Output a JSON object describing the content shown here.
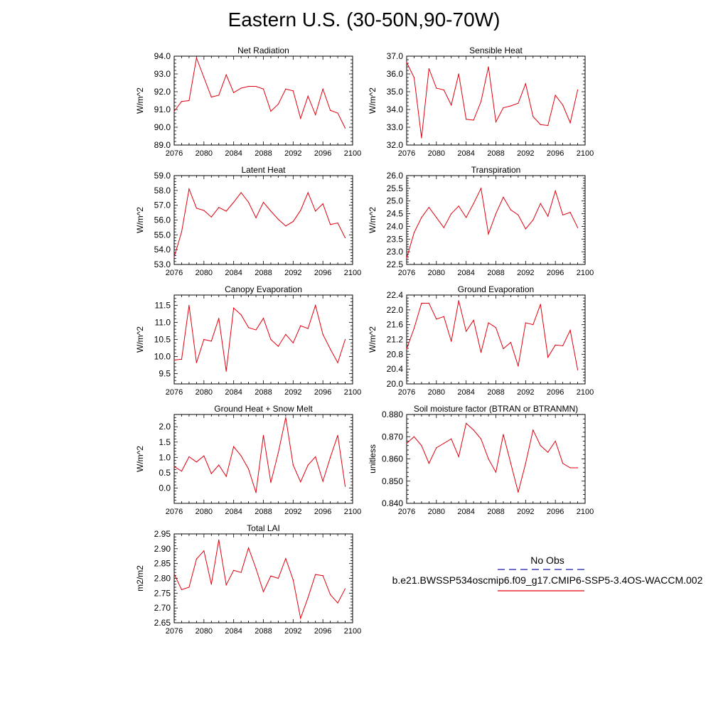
{
  "title": "Eastern U.S. (30-50N,90-70W)",
  "legend": {
    "obs_label": "No Obs",
    "obs_color": "#1a1aa8",
    "model_label": "b.e21.BWSSP534oscmip6.f09_g17.CMIP6-SSP5-3.4OS-WACCM.002",
    "model_color": "#e0000e"
  },
  "chart_data": [
    {
      "type": "line",
      "title": "Net Radiation",
      "ylabel": "W/m^2",
      "xlim": [
        2076,
        2100
      ],
      "ylim": [
        89.0,
        94.0
      ],
      "xticks": [
        2076,
        2080,
        2084,
        2088,
        2092,
        2096,
        2100
      ],
      "yticks": [
        "89.0",
        "90.0",
        "91.0",
        "92.0",
        "93.0",
        "94.0"
      ],
      "series": [
        {
          "x": [
            2076,
            2077,
            2078,
            2079,
            2080,
            2081,
            2082,
            2083,
            2084,
            2085,
            2086,
            2087,
            2088,
            2089,
            2090,
            2091,
            2092,
            2093,
            2094,
            2095,
            2096,
            2097,
            2098,
            2099
          ],
          "values": [
            90.9,
            91.45,
            91.5,
            93.9,
            92.8,
            91.7,
            91.8,
            92.95,
            91.95,
            92.2,
            92.3,
            92.3,
            92.15,
            90.9,
            91.3,
            92.15,
            92.05,
            90.5,
            91.75,
            90.7,
            92.15,
            90.95,
            90.8,
            89.95
          ]
        }
      ]
    },
    {
      "type": "line",
      "title": "Sensible Heat",
      "ylabel": "W/m^2",
      "xlim": [
        2076,
        2100
      ],
      "ylim": [
        32.0,
        37.0
      ],
      "xticks": [
        2076,
        2080,
        2084,
        2088,
        2092,
        2096,
        2100
      ],
      "yticks": [
        "32.0",
        "33.0",
        "34.0",
        "35.0",
        "36.0",
        "37.0"
      ],
      "series": [
        {
          "x": [
            2076,
            2077,
            2078,
            2079,
            2080,
            2081,
            2082,
            2083,
            2084,
            2085,
            2086,
            2087,
            2088,
            2089,
            2090,
            2091,
            2092,
            2093,
            2094,
            2095,
            2096,
            2097,
            2098,
            2099
          ],
          "values": [
            36.65,
            35.8,
            32.4,
            36.3,
            35.2,
            35.1,
            34.25,
            36.0,
            33.45,
            33.4,
            34.45,
            36.4,
            33.3,
            34.1,
            34.2,
            34.35,
            35.45,
            33.6,
            33.15,
            33.1,
            34.8,
            34.25,
            33.25,
            35.1
          ]
        }
      ]
    },
    {
      "type": "line",
      "title": "Latent Heat",
      "ylabel": "W/m^2",
      "xlim": [
        2076,
        2100
      ],
      "ylim": [
        53.0,
        59.0
      ],
      "xticks": [
        2076,
        2080,
        2084,
        2088,
        2092,
        2096,
        2100
      ],
      "yticks": [
        "53.0",
        "54.0",
        "55.0",
        "56.0",
        "57.0",
        "58.0",
        "59.0"
      ],
      "series": [
        {
          "x": [
            2076,
            2077,
            2078,
            2079,
            2080,
            2081,
            2082,
            2083,
            2084,
            2085,
            2086,
            2087,
            2088,
            2089,
            2090,
            2091,
            2092,
            2093,
            2094,
            2095,
            2096,
            2097,
            2098,
            2099
          ],
          "values": [
            53.5,
            55.2,
            58.1,
            56.8,
            56.65,
            56.2,
            56.85,
            56.6,
            57.2,
            57.85,
            57.2,
            56.15,
            57.2,
            56.6,
            56.05,
            55.6,
            55.9,
            56.65,
            57.85,
            56.6,
            57.1,
            55.7,
            55.8,
            54.8
          ]
        }
      ]
    },
    {
      "type": "line",
      "title": "Transpiration",
      "ylabel": "W/m^2",
      "xlim": [
        2076,
        2100
      ],
      "ylim": [
        22.5,
        26.0
      ],
      "xticks": [
        2076,
        2080,
        2084,
        2088,
        2092,
        2096,
        2100
      ],
      "yticks": [
        "22.5",
        "23.0",
        "23.5",
        "24.0",
        "24.5",
        "25.0",
        "25.5",
        "26.0"
      ],
      "series": [
        {
          "x": [
            2076,
            2077,
            2078,
            2079,
            2080,
            2081,
            2082,
            2083,
            2084,
            2085,
            2086,
            2087,
            2088,
            2089,
            2090,
            2091,
            2092,
            2093,
            2094,
            2095,
            2096,
            2097,
            2098,
            2099
          ],
          "values": [
            22.75,
            23.75,
            24.35,
            24.75,
            24.35,
            23.95,
            24.5,
            24.8,
            24.35,
            24.9,
            25.5,
            23.7,
            24.5,
            25.15,
            24.65,
            24.45,
            23.9,
            24.25,
            24.9,
            24.4,
            25.4,
            24.45,
            24.55,
            23.95
          ]
        }
      ]
    },
    {
      "type": "line",
      "title": "Canopy Evaporation",
      "ylabel": "W/m^2",
      "xlim": [
        2076,
        2100
      ],
      "ylim": [
        9.2,
        11.8
      ],
      "xticks": [
        2076,
        2080,
        2084,
        2088,
        2092,
        2096,
        2100
      ],
      "yticks": [
        "9.5",
        "10.0",
        "10.5",
        "11.0",
        "11.5"
      ],
      "series": [
        {
          "x": [
            2076,
            2077,
            2078,
            2079,
            2080,
            2081,
            2082,
            2083,
            2084,
            2085,
            2086,
            2087,
            2088,
            2089,
            2090,
            2091,
            2092,
            2093,
            2094,
            2095,
            2096,
            2097,
            2098,
            2099
          ],
          "values": [
            9.9,
            9.92,
            11.5,
            9.82,
            10.5,
            10.45,
            11.12,
            9.57,
            11.42,
            11.22,
            10.85,
            10.78,
            11.12,
            10.5,
            10.3,
            10.65,
            10.4,
            10.9,
            10.82,
            11.5,
            10.65,
            10.22,
            9.82,
            10.5
          ]
        }
      ]
    },
    {
      "type": "line",
      "title": "Ground Evaporation",
      "ylabel": "W/m^2",
      "xlim": [
        2076,
        2100
      ],
      "ylim": [
        20.0,
        22.4
      ],
      "xticks": [
        2076,
        2080,
        2084,
        2088,
        2092,
        2096,
        2100
      ],
      "yticks": [
        "20.0",
        "20.4",
        "20.8",
        "21.2",
        "21.6",
        "22.0",
        "22.4"
      ],
      "series": [
        {
          "x": [
            2076,
            2077,
            2078,
            2079,
            2080,
            2081,
            2082,
            2083,
            2084,
            2085,
            2086,
            2087,
            2088,
            2089,
            2090,
            2091,
            2092,
            2093,
            2094,
            2095,
            2096,
            2097,
            2098,
            2099
          ],
          "values": [
            20.95,
            21.5,
            22.18,
            22.18,
            21.75,
            21.82,
            21.15,
            22.25,
            21.42,
            21.72,
            20.85,
            21.65,
            21.52,
            20.95,
            21.12,
            20.48,
            21.65,
            21.6,
            22.15,
            20.72,
            21.05,
            21.03,
            21.45,
            20.38
          ]
        }
      ]
    },
    {
      "type": "line",
      "title": "Ground Heat + Snow Melt",
      "ylabel": "W/m^2",
      "xlim": [
        2076,
        2100
      ],
      "ylim": [
        -0.5,
        2.4
      ],
      "xticks": [
        2076,
        2080,
        2084,
        2088,
        2092,
        2096,
        2100
      ],
      "yticks": [
        "0.0",
        "0.5",
        "1.0",
        "1.5",
        "2.0"
      ],
      "series": [
        {
          "x": [
            2076,
            2077,
            2078,
            2079,
            2080,
            2081,
            2082,
            2083,
            2084,
            2085,
            2086,
            2087,
            2088,
            2089,
            2090,
            2091,
            2092,
            2093,
            2094,
            2095,
            2096,
            2097,
            2098,
            2099
          ],
          "values": [
            0.7,
            0.55,
            1.02,
            0.85,
            1.05,
            0.47,
            0.75,
            0.38,
            1.35,
            1.05,
            0.62,
            -0.15,
            1.72,
            0.18,
            1.15,
            2.3,
            0.75,
            0.2,
            0.75,
            1.02,
            0.22,
            1.0,
            1.72,
            0.05
          ]
        }
      ]
    },
    {
      "type": "line",
      "title": "Soil moisture factor (BTRAN or BTRANMN)",
      "ylabel": "unitless",
      "xlim": [
        2076,
        2100
      ],
      "ylim": [
        0.84,
        0.88
      ],
      "xticks": [
        2076,
        2080,
        2084,
        2088,
        2092,
        2096,
        2100
      ],
      "yticks": [
        "0.840",
        "0.850",
        "0.860",
        "0.870",
        "0.880"
      ],
      "series": [
        {
          "x": [
            2076,
            2077,
            2078,
            2079,
            2080,
            2081,
            2082,
            2083,
            2084,
            2085,
            2086,
            2087,
            2088,
            2089,
            2090,
            2091,
            2092,
            2093,
            2094,
            2095,
            2096,
            2097,
            2098,
            2099
          ],
          "values": [
            0.867,
            0.87,
            0.866,
            0.858,
            0.865,
            0.867,
            0.869,
            0.861,
            0.876,
            0.873,
            0.869,
            0.86,
            0.854,
            0.871,
            0.858,
            0.845,
            0.858,
            0.873,
            0.866,
            0.863,
            0.868,
            0.858,
            0.856,
            0.856
          ]
        }
      ]
    },
    {
      "type": "line",
      "title": "Total LAI",
      "ylabel": "m2/m2",
      "xlim": [
        2076,
        2100
      ],
      "ylim": [
        2.65,
        2.95
      ],
      "xticks": [
        2076,
        2080,
        2084,
        2088,
        2092,
        2096,
        2100
      ],
      "yticks": [
        "2.65",
        "2.70",
        "2.75",
        "2.80",
        "2.85",
        "2.90",
        "2.95"
      ],
      "series": [
        {
          "x": [
            2076,
            2077,
            2078,
            2079,
            2080,
            2081,
            2082,
            2083,
            2084,
            2085,
            2086,
            2087,
            2088,
            2089,
            2090,
            2091,
            2092,
            2093,
            2094,
            2095,
            2096,
            2097,
            2098,
            2099
          ],
          "values": [
            2.815,
            2.762,
            2.77,
            2.865,
            2.893,
            2.78,
            2.93,
            2.778,
            2.827,
            2.82,
            2.903,
            2.833,
            2.755,
            2.808,
            2.8,
            2.867,
            2.795,
            2.665,
            2.735,
            2.813,
            2.809,
            2.745,
            2.717,
            2.765
          ]
        }
      ]
    }
  ]
}
